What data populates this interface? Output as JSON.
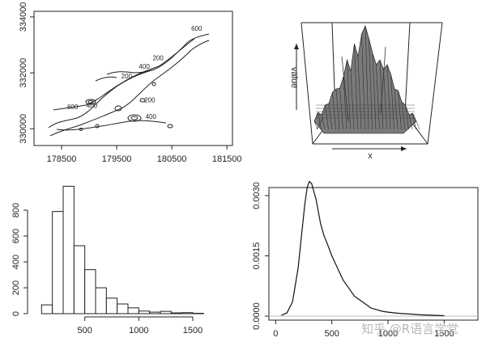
{
  "watermark": "知乎 @R语言学堂",
  "chart_data": [
    {
      "type": "contour",
      "title": "",
      "xlabel": "",
      "ylabel": "",
      "xlim": [
        178000,
        181600
      ],
      "ylim": [
        329400,
        334200
      ],
      "x_ticks": [
        178500,
        179500,
        180500,
        181500
      ],
      "y_ticks": [
        330000,
        332000,
        334000
      ],
      "contour_labels": [
        {
          "text": "600",
          "x": 178700,
          "y": 330700
        },
        {
          "text": "400",
          "x": 179050,
          "y": 330750
        },
        {
          "text": "200",
          "x": 180100,
          "y": 330950
        },
        {
          "text": "400",
          "x": 180120,
          "y": 330350
        },
        {
          "text": "200",
          "x": 179680,
          "y": 331800
        },
        {
          "text": "200",
          "x": 180250,
          "y": 332450
        },
        {
          "text": "400",
          "x": 180000,
          "y": 332150
        },
        {
          "text": "600",
          "x": 180950,
          "y": 333500
        }
      ]
    },
    {
      "type": "surface3d",
      "xlabel": "x",
      "zlabel": "value"
    },
    {
      "type": "bar",
      "subtype": "histogram",
      "title": "",
      "xlabel": "",
      "ylabel": "",
      "xlim": [
        0,
        1800
      ],
      "ylim": [
        0,
        1000
      ],
      "x_ticks": [
        500,
        1000,
        1500
      ],
      "y_ticks": [
        0,
        200,
        400,
        600,
        800
      ],
      "bin_width": 100,
      "bin_starts": [
        100,
        200,
        300,
        400,
        500,
        600,
        700,
        800,
        900,
        1000,
        1100,
        1200,
        1300,
        1400,
        1500
      ],
      "values": [
        68,
        790,
        985,
        525,
        340,
        200,
        120,
        75,
        45,
        20,
        12,
        18,
        6,
        8,
        3
      ]
    },
    {
      "type": "line",
      "subtype": "density",
      "title": "",
      "xlabel": "",
      "ylabel": "",
      "xlim": [
        -60,
        1800
      ],
      "ylim": [
        -0.0001,
        0.0032
      ],
      "x_ticks": [
        0,
        500,
        1000,
        1500
      ],
      "y_ticks": [
        0.0,
        0.0015,
        0.003
      ],
      "y_tick_labels": [
        "0.0000",
        "0.0015",
        "0.0030"
      ],
      "x": [
        50,
        100,
        150,
        200,
        230,
        260,
        280,
        300,
        320,
        340,
        360,
        380,
        400,
        430,
        460,
        500,
        550,
        600,
        650,
        700,
        750,
        800,
        850,
        900,
        950,
        1000,
        1100,
        1200,
        1300,
        1400,
        1500
      ],
      "y": [
        2e-05,
        8e-05,
        0.00035,
        0.0012,
        0.002,
        0.0028,
        0.0032,
        0.00335,
        0.0033,
        0.0031,
        0.0029,
        0.0026,
        0.0023,
        0.002,
        0.0018,
        0.0015,
        0.0012,
        0.0009,
        0.0007,
        0.0005,
        0.0004,
        0.0003,
        0.0002,
        0.00016,
        0.00012,
        0.0001,
        7e-05,
        5e-05,
        3e-05,
        2e-05,
        1e-05
      ]
    }
  ]
}
